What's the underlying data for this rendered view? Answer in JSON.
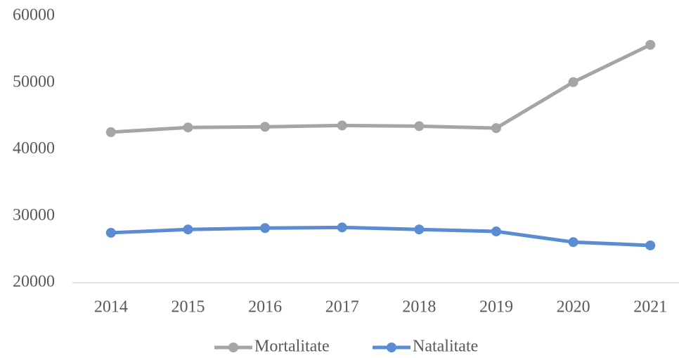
{
  "chart_data": {
    "type": "line",
    "categories": [
      "2014",
      "2015",
      "2016",
      "2017",
      "2018",
      "2019",
      "2020",
      "2021"
    ],
    "series": [
      {
        "name": "Mortalitate",
        "color": "#a5a5a5",
        "values": [
          42600,
          43300,
          43400,
          43600,
          43500,
          43200,
          50100,
          55700
        ]
      },
      {
        "name": "Natalitate",
        "color": "#5b8bd0",
        "values": [
          27500,
          28000,
          28200,
          28300,
          28000,
          27700,
          26100,
          25600
        ]
      }
    ],
    "ylim": [
      20000,
      60000
    ],
    "yticks": [
      20000,
      30000,
      40000,
      50000,
      60000
    ],
    "grid": false,
    "legend": "bottom"
  }
}
